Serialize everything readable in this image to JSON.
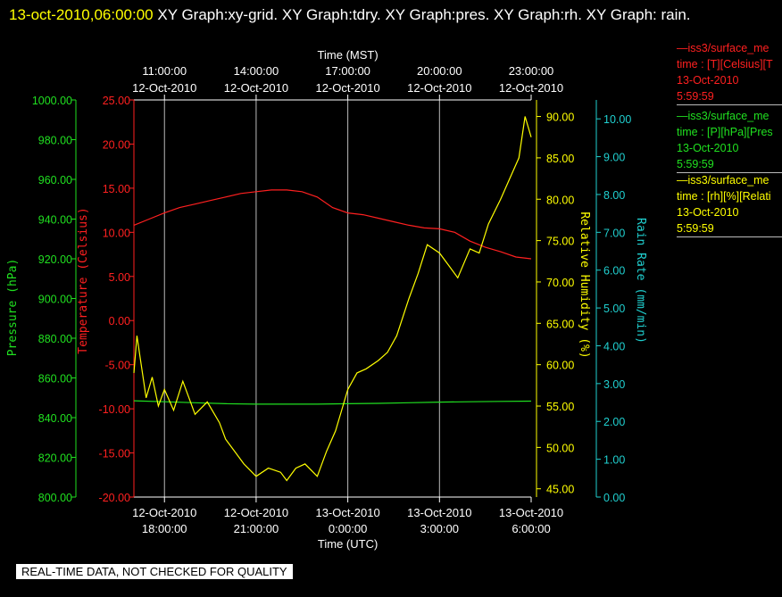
{
  "header": {
    "timestamp": "13-oct-2010,06:00:00",
    "title": "XY Graph:xy-grid.  XY Graph:tdry.  XY Graph:pres.  XY Graph:rh.  XY Graph: rain."
  },
  "note": "REAL-TIME DATA, NOT CHECKED FOR QUALITY",
  "legend": [
    {
      "line1": "—iss3/surface_me",
      "line2": "time : [T][Celsius][T",
      "line3": "13-Oct-2010",
      "line4": "5:59:59",
      "color": "#ff2020"
    },
    {
      "line1": "—iss3/surface_me",
      "line2": "time : [P][hPa][Pres",
      "line3": "13-Oct-2010",
      "line4": "5:59:59",
      "color": "#20e020"
    },
    {
      "line1": "—iss3/surface_me",
      "line2": "time : [rh][%][Relati",
      "line3": "13-Oct-2010",
      "line4": "5:59:59",
      "color": "#ffff00"
    }
  ],
  "chart_data": {
    "type": "line",
    "x_top_label": "Time (MST)",
    "x_bottom_label": "Time (UTC)",
    "x_range_hours": [
      17,
      30
    ],
    "top_ticks": [
      {
        "h": 18,
        "l1": "11:00:00",
        "l2": "12-Oct-2010"
      },
      {
        "h": 21,
        "l1": "14:00:00",
        "l2": "12-Oct-2010"
      },
      {
        "h": 24,
        "l1": "17:00:00",
        "l2": "12-Oct-2010"
      },
      {
        "h": 27,
        "l1": "20:00:00",
        "l2": "12-Oct-2010"
      },
      {
        "h": 30,
        "l1": "23:00:00",
        "l2": "12-Oct-2010"
      }
    ],
    "bottom_ticks": [
      {
        "h": 18,
        "l1": "12-Oct-2010",
        "l2": "18:00:00"
      },
      {
        "h": 21,
        "l1": "12-Oct-2010",
        "l2": "21:00:00"
      },
      {
        "h": 24,
        "l1": "13-Oct-2010",
        "l2": "0:00:00"
      },
      {
        "h": 27,
        "l1": "13-Oct-2010",
        "l2": "3:00:00"
      },
      {
        "h": 30,
        "l1": "13-Oct-2010",
        "l2": "6:00:00"
      }
    ],
    "grid_hours": [
      18,
      21,
      24,
      27,
      30
    ],
    "axes": {
      "pressure": {
        "label": "Pressure (hPa)",
        "range": [
          800,
          1000
        ],
        "ticks": [
          "800.00",
          "820.00",
          "840.00",
          "860.00",
          "880.00",
          "900.00",
          "920.00",
          "940.00",
          "960.00",
          "980.00",
          "1000.00"
        ],
        "color": "#20e020"
      },
      "temperature": {
        "label": "Temperature (Celsius)",
        "range": [
          -20,
          25
        ],
        "ticks": [
          "-20.00",
          "-15.00",
          "-10.00",
          "-5.00",
          "0.00",
          "5.00",
          "10.00",
          "15.00",
          "20.00",
          "25.00"
        ],
        "color": "#ff2020"
      },
      "rh": {
        "label": "Relative Humidity (%)",
        "range": [
          44,
          92
        ],
        "ticks": [
          "45.00",
          "50.00",
          "55.00",
          "60.00",
          "65.00",
          "70.00",
          "75.00",
          "80.00",
          "85.00",
          "90.00"
        ],
        "color": "#ffff00"
      },
      "rain": {
        "label": "Rain Rate (mm/min)",
        "range": [
          0,
          10.5
        ],
        "ticks": [
          "0.00",
          "1.00",
          "2.00",
          "3.00",
          "4.00",
          "5.00",
          "6.00",
          "7.00",
          "8.00",
          "9.00",
          "10.00"
        ],
        "color": "#20d0d0"
      }
    },
    "series": [
      {
        "key": "temperature",
        "color": "#ff2020",
        "x": [
          17.0,
          17.5,
          18.0,
          18.5,
          19.0,
          19.5,
          20.0,
          20.5,
          21.0,
          21.5,
          22.0,
          22.5,
          23.0,
          23.5,
          24.0,
          24.5,
          25.0,
          25.5,
          26.0,
          26.5,
          27.0,
          27.5,
          28.0,
          28.5,
          29.0,
          29.5,
          30.0
        ],
        "y": [
          10.8,
          11.5,
          12.2,
          12.8,
          13.2,
          13.6,
          14.0,
          14.4,
          14.6,
          14.8,
          14.8,
          14.6,
          14.0,
          12.8,
          12.2,
          12.0,
          11.6,
          11.2,
          10.8,
          10.5,
          10.4,
          10.0,
          9.0,
          8.3,
          7.8,
          7.2,
          7.0
        ]
      },
      {
        "key": "pressure",
        "color": "#20e020",
        "x": [
          17.0,
          18.0,
          19.0,
          20.0,
          21.0,
          22.0,
          23.0,
          24.0,
          25.0,
          26.0,
          27.0,
          28.0,
          29.0,
          30.0
        ],
        "y": [
          848.5,
          848.0,
          847.5,
          847.0,
          846.8,
          846.8,
          846.8,
          847.0,
          847.2,
          847.5,
          847.8,
          848.0,
          848.2,
          848.3
        ]
      },
      {
        "key": "rh",
        "color": "#ffff00",
        "x": [
          17.0,
          17.1,
          17.2,
          17.4,
          17.6,
          17.8,
          18.0,
          18.3,
          18.6,
          19.0,
          19.4,
          19.8,
          20.0,
          20.3,
          20.6,
          21.0,
          21.4,
          21.8,
          22.0,
          22.3,
          22.6,
          23.0,
          23.3,
          23.6,
          24.0,
          24.3,
          24.6,
          25.0,
          25.3,
          25.6,
          26.0,
          26.3,
          26.6,
          27.0,
          27.3,
          27.6,
          28.0,
          28.3,
          28.6,
          29.0,
          29.3,
          29.6,
          29.8,
          30.0
        ],
        "y": [
          59.0,
          63.5,
          61.0,
          56.0,
          58.5,
          55.0,
          57.0,
          54.5,
          58.0,
          54.0,
          55.5,
          53.0,
          51.0,
          49.5,
          48.0,
          46.5,
          47.5,
          47.0,
          46.0,
          47.5,
          48.0,
          46.5,
          49.5,
          52.0,
          57.0,
          59.0,
          59.5,
          60.5,
          61.5,
          63.5,
          68.0,
          71.0,
          74.5,
          73.5,
          72.0,
          70.5,
          74.0,
          73.5,
          77.0,
          80.0,
          82.5,
          85.0,
          90.0,
          87.5
        ]
      }
    ]
  }
}
